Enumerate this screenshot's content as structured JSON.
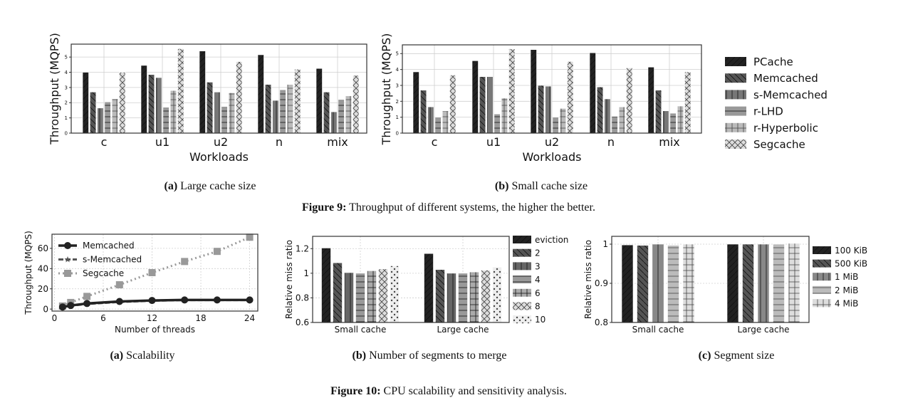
{
  "figure9": {
    "caption_label": "Figure 9:",
    "caption_text": "Throughput of different systems, the higher the better.",
    "sub_a_label": "(a)",
    "sub_a_text": "Large cache size",
    "sub_b_label": "(b)",
    "sub_b_text": "Small cache size"
  },
  "figure10": {
    "caption_label": "Figure 10:",
    "caption_text": "CPU scalability and sensitivity analysis.",
    "sub_a_label": "(a)",
    "sub_a_text": "Scalability",
    "sub_b_label": "(b)",
    "sub_b_text": "Number of segments to merge",
    "sub_c_label": "(c)",
    "sub_c_text": "Segment size"
  },
  "chart_data": [
    {
      "id": "fig9a",
      "type": "bar",
      "xlabel": "Workloads",
      "ylabel": "Throughput (MQPS)",
      "categories": [
        "c",
        "u1",
        "u2",
        "n",
        "mix"
      ],
      "yticks": [
        0,
        1,
        2,
        3,
        4,
        5
      ],
      "ylim": [
        0,
        5.85
      ],
      "grid": true,
      "legend_position": "right (shared)",
      "series": [
        {
          "name": "PCache",
          "values": [
            4.0,
            4.45,
            5.4,
            5.15,
            4.25
          ],
          "color": "#222222",
          "hatch": "/"
        },
        {
          "name": "Memcached",
          "values": [
            2.7,
            3.85,
            3.35,
            3.2,
            2.7
          ],
          "color": "#555555",
          "hatch": "\\"
        },
        {
          "name": "s-Memcached",
          "values": [
            1.65,
            3.65,
            2.7,
            2.15,
            1.4
          ],
          "color": "#777777",
          "hatch": "|"
        },
        {
          "name": "r-LHD",
          "values": [
            2.05,
            1.7,
            1.75,
            2.85,
            2.2
          ],
          "color": "#999999",
          "hatch": "-"
        },
        {
          "name": "r-Hyperbolic",
          "values": [
            2.25,
            2.8,
            2.65,
            3.2,
            2.45
          ],
          "color": "#bbbbbb",
          "hatch": "+"
        },
        {
          "name": "Segcache",
          "values": [
            4.0,
            5.55,
            4.7,
            4.2,
            3.8
          ],
          "color": "#dddddd",
          "hatch": "x"
        }
      ]
    },
    {
      "id": "fig9b",
      "type": "bar",
      "xlabel": "Workloads",
      "ylabel": "Throughput (MQPS)",
      "categories": [
        "c",
        "u1",
        "u2",
        "n",
        "mix"
      ],
      "yticks": [
        0,
        1,
        2,
        3,
        4,
        5
      ],
      "ylim": [
        0,
        5.55
      ],
      "grid": true,
      "series": [
        {
          "name": "PCache",
          "values": [
            3.85,
            4.55,
            5.25,
            5.05,
            4.15
          ],
          "color": "#222222",
          "hatch": "/"
        },
        {
          "name": "Memcached",
          "values": [
            2.7,
            3.55,
            3.0,
            2.9,
            2.7
          ],
          "color": "#555555",
          "hatch": "\\"
        },
        {
          "name": "s-Memcached",
          "values": [
            1.65,
            3.55,
            2.95,
            2.15,
            1.4
          ],
          "color": "#777777",
          "hatch": "|"
        },
        {
          "name": "r-LHD",
          "values": [
            1.0,
            1.2,
            1.0,
            1.05,
            1.25
          ],
          "color": "#999999",
          "hatch": "-"
        },
        {
          "name": "r-Hyperbolic",
          "values": [
            1.4,
            2.2,
            1.55,
            1.65,
            1.7
          ],
          "color": "#bbbbbb",
          "hatch": "+"
        },
        {
          "name": "Segcache",
          "values": [
            3.65,
            5.3,
            4.5,
            4.1,
            3.85
          ],
          "color": "#dddddd",
          "hatch": "x"
        }
      ]
    },
    {
      "id": "fig10a",
      "type": "line",
      "xlabel": "Number of threads",
      "ylabel": "Throughput (MQPS)",
      "xticks": [
        0,
        6,
        12,
        18,
        24
      ],
      "yticks": [
        0,
        20,
        40,
        60
      ],
      "xlim": [
        -0.3,
        25
      ],
      "ylim": [
        -2,
        74
      ],
      "grid": true,
      "legend_position": "top-left",
      "x": [
        1,
        2,
        4,
        8,
        12,
        16,
        20,
        24
      ],
      "series": [
        {
          "name": "Memcached",
          "values": [
            2,
            3.5,
            5.5,
            7.5,
            8.5,
            9,
            9,
            9
          ],
          "color": "#222222",
          "marker": "circle",
          "dash": "solid"
        },
        {
          "name": "s-Memcached",
          "values": [
            1.8,
            3.2,
            5,
            7,
            8.2,
            8.8,
            8.8,
            8.8
          ],
          "color": "#555555",
          "marker": "star",
          "dash": "dashed"
        },
        {
          "name": "Segcache",
          "values": [
            3,
            6.5,
            12.5,
            24,
            36,
            47,
            57,
            71
          ],
          "color": "#999999",
          "marker": "square",
          "dash": "dotted"
        }
      ]
    },
    {
      "id": "fig10b",
      "type": "bar",
      "xlabel": "",
      "ylabel": "Relative miss ratio",
      "categories": [
        "Small cache",
        "Large cache"
      ],
      "yticks": [
        0.6,
        0.8,
        1.0,
        1.2
      ],
      "ylim": [
        0.6,
        1.3
      ],
      "grid": true,
      "legend_position": "right",
      "series": [
        {
          "name": "eviction",
          "values": [
            1.205,
            1.16
          ],
          "color": "#222222",
          "hatch": "/"
        },
        {
          "name": "2",
          "values": [
            1.085,
            1.03
          ],
          "color": "#555555",
          "hatch": "\\"
        },
        {
          "name": "3",
          "values": [
            1.005,
            1.0
          ],
          "color": "#666666",
          "hatch": "|"
        },
        {
          "name": "4",
          "values": [
            1.0,
            1.0
          ],
          "color": "#999999",
          "hatch": "-"
        },
        {
          "name": "6",
          "values": [
            1.02,
            1.01
          ],
          "color": "#aaaaaa",
          "hatch": "+"
        },
        {
          "name": "8",
          "values": [
            1.035,
            1.025
          ],
          "color": "#dddddd",
          "hatch": "x"
        },
        {
          "name": "10",
          "values": [
            1.06,
            1.05
          ],
          "color": "#eeeeee",
          "hatch": "."
        }
      ]
    },
    {
      "id": "fig10c",
      "type": "bar",
      "xlabel": "",
      "ylabel": "Relative miss ratio",
      "categories": [
        "Small cache",
        "Large cache"
      ],
      "yticks": [
        0.8,
        0.9,
        1.0
      ],
      "ylim": [
        0.8,
        1.02
      ],
      "grid": true,
      "legend_position": "right",
      "series": [
        {
          "name": "100 KiB",
          "values": [
            0.998,
            1.0
          ],
          "color": "#222222",
          "hatch": "/"
        },
        {
          "name": "500 KiB",
          "values": [
            0.997,
            1.0
          ],
          "color": "#555555",
          "hatch": "\\"
        },
        {
          "name": "1 MiB",
          "values": [
            1.0,
            1.0
          ],
          "color": "#888888",
          "hatch": "|"
        },
        {
          "name": "2 MiB",
          "values": [
            0.997,
            1.0
          ],
          "color": "#bbbbbb",
          "hatch": "-"
        },
        {
          "name": "4 MiB",
          "values": [
            1.0,
            1.002
          ],
          "color": "#dddddd",
          "hatch": "+"
        }
      ]
    }
  ]
}
